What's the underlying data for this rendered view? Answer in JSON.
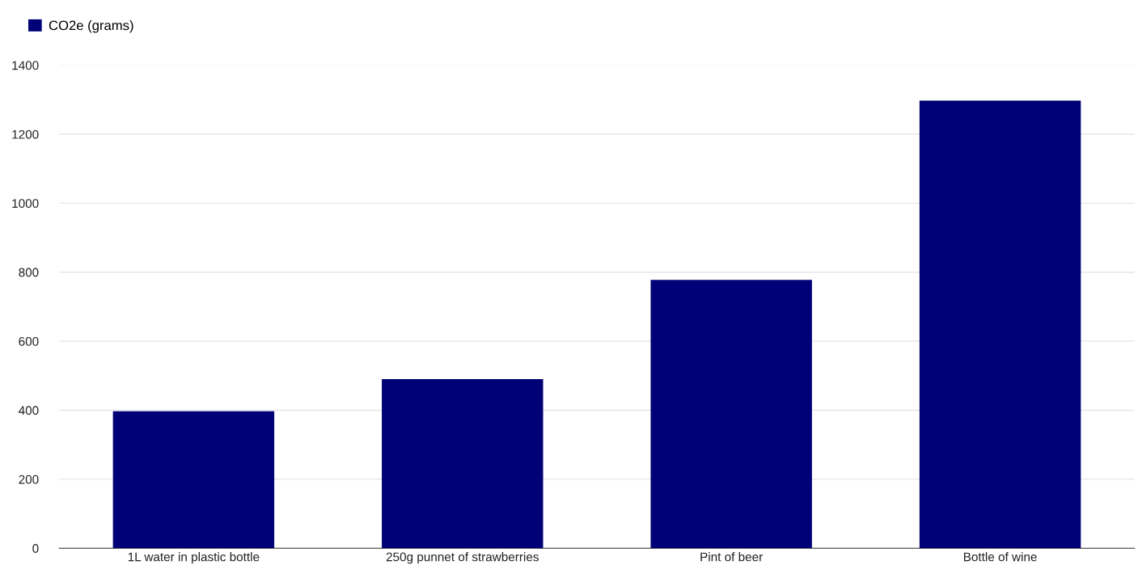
{
  "chart_data": {
    "type": "bar",
    "categories": [
      "1L water in plastic bottle",
      "250g punnet of strawberries",
      "Pint of beer",
      "Bottle of wine"
    ],
    "series": [
      {
        "name": "CO2e (grams)",
        "color": "#000077",
        "values": [
          397,
          490,
          778,
          1297
        ]
      }
    ],
    "ylim": [
      0,
      1400
    ],
    "yticks": [
      0,
      200,
      400,
      600,
      800,
      1000,
      1200,
      1400
    ],
    "grid": "y",
    "legend": "top left"
  }
}
